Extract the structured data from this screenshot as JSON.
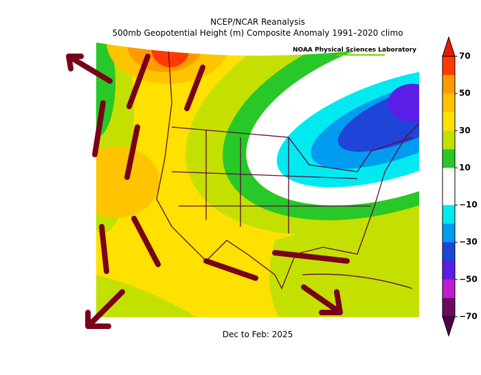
{
  "header": {
    "line1": "NCEP/NCAR Reanalysis",
    "line2": "500mb Geopotential Height (m) Composite Anomaly 1991–2020 climo"
  },
  "credit": "NOAA Physical Sciences Laboratory",
  "footer": "Dec to Feb: 2025",
  "colorbar": {
    "range": [
      -70,
      70
    ],
    "ticks": [
      {
        "value": 70,
        "label": "70"
      },
      {
        "value": 50,
        "label": "50"
      },
      {
        "value": 30,
        "label": "30"
      },
      {
        "value": 10,
        "label": "10"
      },
      {
        "value": -10,
        "label": "−10"
      },
      {
        "value": -30,
        "label": "−30"
      },
      {
        "value": -50,
        "label": "−50"
      },
      {
        "value": -70,
        "label": "−70"
      }
    ],
    "colors": [
      "#ff3a00",
      "#ff9a00",
      "#ffc400",
      "#ffe100",
      "#c4e000",
      "#28c828",
      "#ffffff",
      "#ffffff",
      "#00eaf0",
      "#009cf0",
      "#1f45d8",
      "#5a1ee6",
      "#c01cd0",
      "#6a0a60"
    ],
    "over_color": "#e81800",
    "under_color": "#500048"
  }
}
